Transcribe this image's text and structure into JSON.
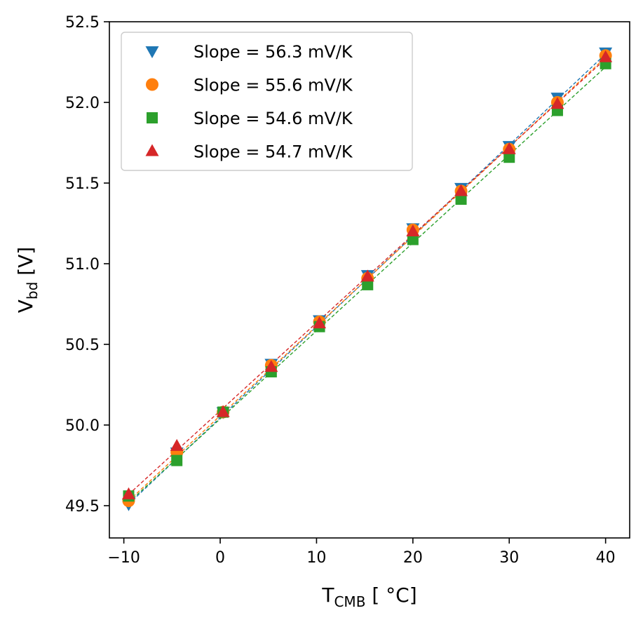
{
  "chart_data": {
    "type": "scatter",
    "title": "",
    "xlabel": {
      "main": "T",
      "sub": "CMB",
      "unit": " [$\\circ$C]",
      "display_unit": " [ °C]"
    },
    "ylabel": {
      "main": "V",
      "sub": "bd",
      "unit": " [V]"
    },
    "xlim": [
      -11.5,
      42.5
    ],
    "ylim": [
      49.3,
      52.5
    ],
    "xticks": [
      -10,
      0,
      10,
      20,
      30,
      40
    ],
    "xtick_labels": [
      "−10",
      "0",
      "10",
      "20",
      "30",
      "40"
    ],
    "yticks": [
      49.5,
      50.0,
      50.5,
      51.0,
      51.5,
      52.0,
      52.5
    ],
    "ytick_labels": [
      "49.5",
      "50.0",
      "50.5",
      "51.0",
      "51.5",
      "52.0",
      "52.5"
    ],
    "grid": false,
    "legend_position": "top-left",
    "series": [
      {
        "name": "Slope = 56.3 mV/K",
        "color": "#1f77b4",
        "marker": "triangle-down",
        "x": [
          -9.5,
          -4.5,
          0.3,
          5.3,
          10.3,
          15.3,
          20.0,
          25.0,
          30.0,
          35.0,
          40.0
        ],
        "y": [
          49.51,
          49.83,
          50.08,
          50.38,
          50.65,
          50.93,
          51.22,
          51.47,
          51.73,
          52.03,
          52.31
        ],
        "fit": {
          "x0": -9.5,
          "y0": 49.51,
          "x1": 40.0,
          "y1": 52.3
        }
      },
      {
        "name": "Slope = 55.6 mV/K",
        "color": "#ff7f0e",
        "marker": "circle",
        "x": [
          -9.5,
          -4.5,
          0.3,
          5.3,
          10.3,
          15.3,
          20.0,
          25.0,
          30.0,
          35.0,
          40.0
        ],
        "y": [
          49.53,
          49.83,
          50.08,
          50.37,
          50.64,
          50.91,
          51.21,
          51.45,
          51.71,
          52.0,
          52.29
        ],
        "fit": {
          "x0": -9.5,
          "y0": 49.53,
          "x1": 40.0,
          "y1": 52.28
        }
      },
      {
        "name": "Slope = 54.6 mV/K",
        "color": "#2ca02c",
        "marker": "square",
        "x": [
          -9.5,
          -4.5,
          0.3,
          5.3,
          10.3,
          15.3,
          20.0,
          25.0,
          30.0,
          35.0,
          40.0
        ],
        "y": [
          49.56,
          49.78,
          50.08,
          50.33,
          50.61,
          50.87,
          51.15,
          51.4,
          51.66,
          51.95,
          52.24
        ],
        "fit": {
          "x0": -9.5,
          "y0": 49.52,
          "x1": 40.0,
          "y1": 52.22
        }
      },
      {
        "name": "Slope = 54.7 mV/K",
        "color": "#d62728",
        "marker": "triangle-up",
        "x": [
          -9.5,
          -4.5,
          0.3,
          5.3,
          10.3,
          15.3,
          20.0,
          25.0,
          30.0,
          35.0,
          40.0
        ],
        "y": [
          49.57,
          49.87,
          50.08,
          50.36,
          50.63,
          50.92,
          51.2,
          51.45,
          51.71,
          51.99,
          52.28
        ],
        "fit": {
          "x0": -9.5,
          "y0": 49.57,
          "x1": 40.0,
          "y1": 52.27
        }
      }
    ]
  }
}
